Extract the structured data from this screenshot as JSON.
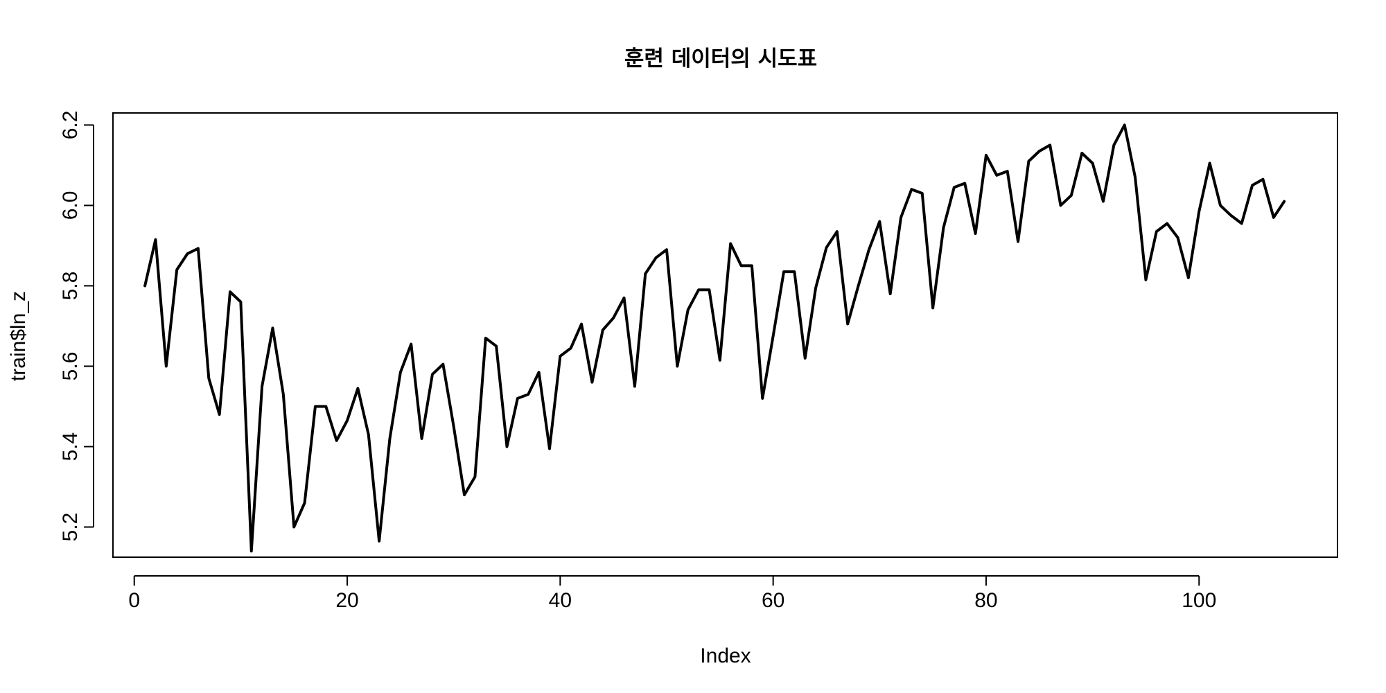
{
  "chart_data": {
    "type": "line",
    "title": "훈련 데이터의 시도표",
    "xlabel": "Index",
    "ylabel": "train$ln_z",
    "xlim": [
      -2,
      113
    ],
    "ylim": [
      5.125,
      6.23
    ],
    "x_ticks": [
      0,
      20,
      40,
      60,
      80,
      100
    ],
    "x_tick_labels": [
      "0",
      "20",
      "40",
      "60",
      "80",
      "100"
    ],
    "y_ticks": [
      5.2,
      5.4,
      5.6,
      5.8,
      6.0,
      6.2
    ],
    "y_tick_labels": [
      "5.2",
      "5.4",
      "5.6",
      "5.8",
      "6.0",
      "6.2"
    ],
    "grid": false,
    "line_color": "#000000",
    "series": [
      {
        "x": [
          1,
          2,
          3,
          4,
          5,
          6,
          7,
          8,
          9,
          10,
          11,
          12,
          13,
          14,
          15,
          16,
          17,
          18,
          19,
          20,
          21,
          22,
          23,
          24,
          25,
          26,
          27,
          28,
          29,
          30,
          31,
          32,
          33,
          34,
          35,
          36,
          37,
          38,
          39,
          40,
          41,
          42,
          43,
          44,
          45,
          46,
          47,
          48,
          49,
          50,
          51,
          52,
          53,
          54,
          55,
          56,
          57,
          58,
          59,
          60,
          61,
          62,
          63,
          64,
          65,
          66,
          67,
          68,
          69,
          70,
          71,
          72,
          73,
          74,
          75,
          76,
          77,
          78,
          79,
          80,
          81,
          82,
          83,
          84,
          85,
          86,
          87,
          88,
          89,
          90,
          91,
          92,
          93,
          94,
          95,
          96,
          97,
          98,
          99,
          100,
          101,
          102,
          103,
          104,
          105,
          106,
          107,
          108
        ],
        "values": [
          5.8,
          5.915,
          5.6,
          5.84,
          5.88,
          5.893,
          5.57,
          5.48,
          5.785,
          5.76,
          5.14,
          5.55,
          5.695,
          5.53,
          5.2,
          5.26,
          5.5,
          5.5,
          5.415,
          5.465,
          5.545,
          5.43,
          5.165,
          5.42,
          5.585,
          5.655,
          5.42,
          5.58,
          5.605,
          5.45,
          5.28,
          5.325,
          5.67,
          5.65,
          5.4,
          5.52,
          5.53,
          5.585,
          5.395,
          5.625,
          5.645,
          5.705,
          5.56,
          5.69,
          5.72,
          5.77,
          5.55,
          5.83,
          5.87,
          5.89,
          5.6,
          5.74,
          5.79,
          5.79,
          5.615,
          5.905,
          5.85,
          5.85,
          5.52,
          5.675,
          5.835,
          5.835,
          5.62,
          5.795,
          5.895,
          5.935,
          5.705,
          5.8,
          5.89,
          5.96,
          5.78,
          5.97,
          6.04,
          6.03,
          5.745,
          5.945,
          6.045,
          6.055,
          5.93,
          6.125,
          6.075,
          6.085,
          5.91,
          6.11,
          6.135,
          6.15,
          6.0,
          6.025,
          6.13,
          6.105,
          6.01,
          6.15,
          6.2,
          6.07,
          5.815,
          5.935,
          5.955,
          5.92,
          5.82,
          5.985,
          6.105,
          6.0,
          5.975,
          5.955,
          6.05,
          6.065,
          5.97,
          6.01
        ]
      }
    ]
  }
}
